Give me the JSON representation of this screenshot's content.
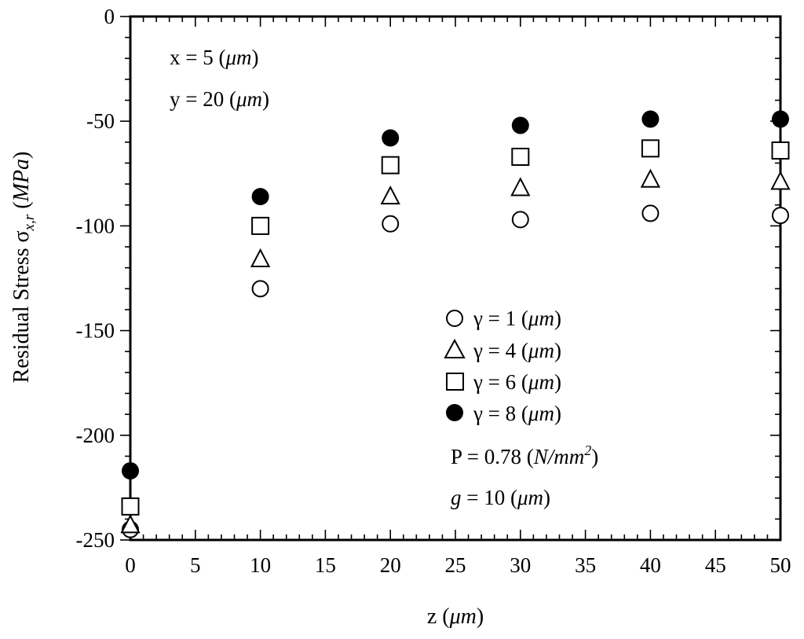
{
  "chart_data": {
    "type": "scatter",
    "title": "",
    "xlabel": {
      "pre": "z (",
      "unit": "μm",
      "post": ")"
    },
    "ylabel": {
      "pre": "Residual Stress σ",
      "sub": "x,r",
      "post_pre": " (",
      "unit": "MPa",
      "post": ")"
    },
    "xlim": [
      0,
      50
    ],
    "ylim": [
      -250,
      0
    ],
    "x_ticks": [
      0,
      5,
      10,
      15,
      20,
      25,
      30,
      35,
      40,
      45,
      50
    ],
    "y_ticks": [
      0,
      -50,
      -100,
      -150,
      -200,
      -250
    ],
    "x_tick_labels": [
      "0",
      "5",
      "10",
      "15",
      "20",
      "25",
      "30",
      "35",
      "40",
      "45",
      "50"
    ],
    "y_tick_labels": [
      "0",
      "-50",
      "-100",
      "-150",
      "-200",
      "-250"
    ],
    "grid": false,
    "legend_position": "center-right",
    "x": [
      0,
      10,
      20,
      30,
      40,
      50
    ],
    "series": [
      {
        "name": "γ = 1 (μm)",
        "name_parts": {
          "pre": "γ = 1 (",
          "unit": "μm",
          "post": ")"
        },
        "marker": "circle-open",
        "values": [
          -245,
          -130,
          -99,
          -97,
          -94,
          -95
        ]
      },
      {
        "name": "γ = 4 (μm)",
        "name_parts": {
          "pre": "γ = 4 (",
          "unit": "μm",
          "post": ")"
        },
        "marker": "triangle-open",
        "values": [
          -243,
          -116,
          -86,
          -82,
          -78,
          -79
        ]
      },
      {
        "name": "γ = 6 (μm)",
        "name_parts": {
          "pre": "γ = 6 (",
          "unit": "μm",
          "post": ")"
        },
        "marker": "square-open",
        "values": [
          -234,
          -100,
          -71,
          -67,
          -63,
          -64
        ]
      },
      {
        "name": "γ = 8 (μm)",
        "name_parts": {
          "pre": "γ = 8 (",
          "unit": "μm",
          "post": ")"
        },
        "marker": "circle-filled",
        "values": [
          -217,
          -86,
          -58,
          -52,
          -49,
          -49
        ]
      }
    ],
    "annotations_top": [
      {
        "pre": "x = 5 (",
        "unit": "μm",
        "post": ")"
      },
      {
        "pre": "y = 20 (",
        "unit": "μm",
        "post": ")"
      }
    ],
    "annotation_p": {
      "pre": "P = 0.78 (",
      "unit": "N/mm",
      "sup": "2",
      "post": ")"
    },
    "annotation_g": {
      "var": "g",
      "pre": " = 10 (",
      "unit": "μm",
      "post": ")"
    }
  }
}
